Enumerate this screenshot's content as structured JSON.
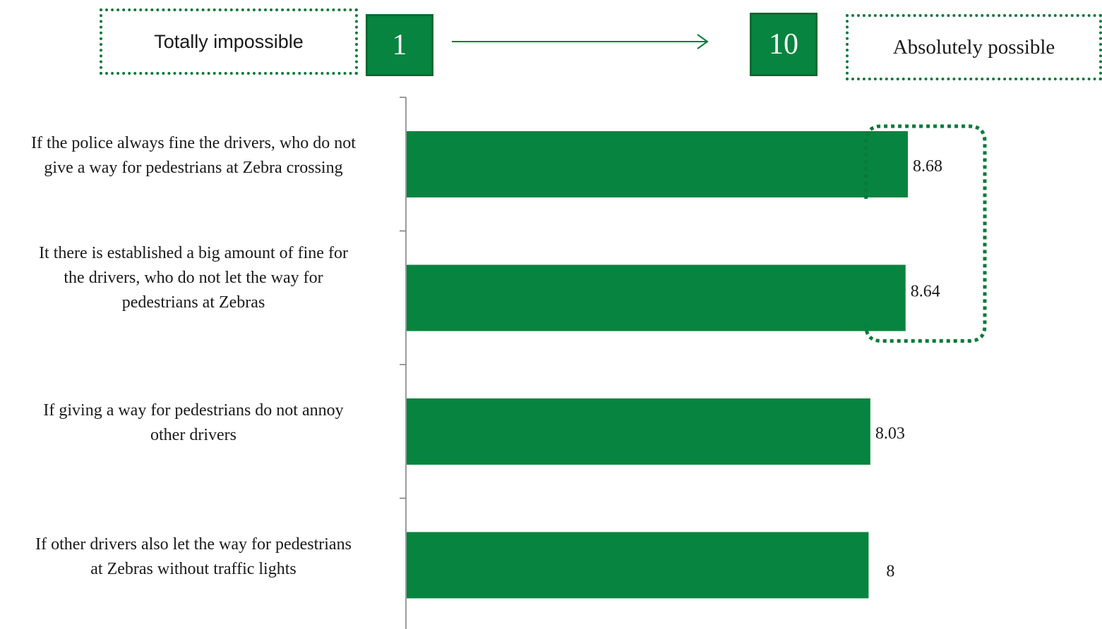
{
  "scale": {
    "min_label": "Totally impossible",
    "min_value": "1",
    "max_value": "10",
    "max_label": "Absolutely possible"
  },
  "colors": {
    "bar": "#07843f",
    "accent": "#0a7a3a",
    "axis": "#7a7a7a"
  },
  "chart_data": {
    "type": "bar",
    "orientation": "horizontal",
    "categories": [
      "If the police always fine the drivers, who do not give a way for pedestrians at Zebra crossing",
      "It there is established a big amount of fine for the drivers, who do not let the way for pedestrians at Zebras",
      "If giving a way for pedestrians do not annoy other drivers",
      "If other drivers also let the way for pedestrians at Zebras without traffic lights"
    ],
    "category_lines": [
      [
        "If the police always fine the drivers, who do not",
        "give a way for pedestrians at Zebra crossing"
      ],
      [
        "It there is established a big amount of fine for",
        "the drivers, who do not let the way for",
        "pedestrians at Zebras"
      ],
      [
        "If giving a way for pedestrians do not annoy",
        "other drivers"
      ],
      [
        "If other drivers also let the way for pedestrians",
        "at Zebras without traffic lights"
      ]
    ],
    "values": [
      8.68,
      8.64,
      8.03,
      8
    ],
    "value_labels": [
      "8.68",
      "8.64",
      "8.03",
      "8"
    ],
    "title": "",
    "xlabel": "",
    "ylabel": "",
    "highlighted_categories": [
      0,
      1
    ]
  }
}
